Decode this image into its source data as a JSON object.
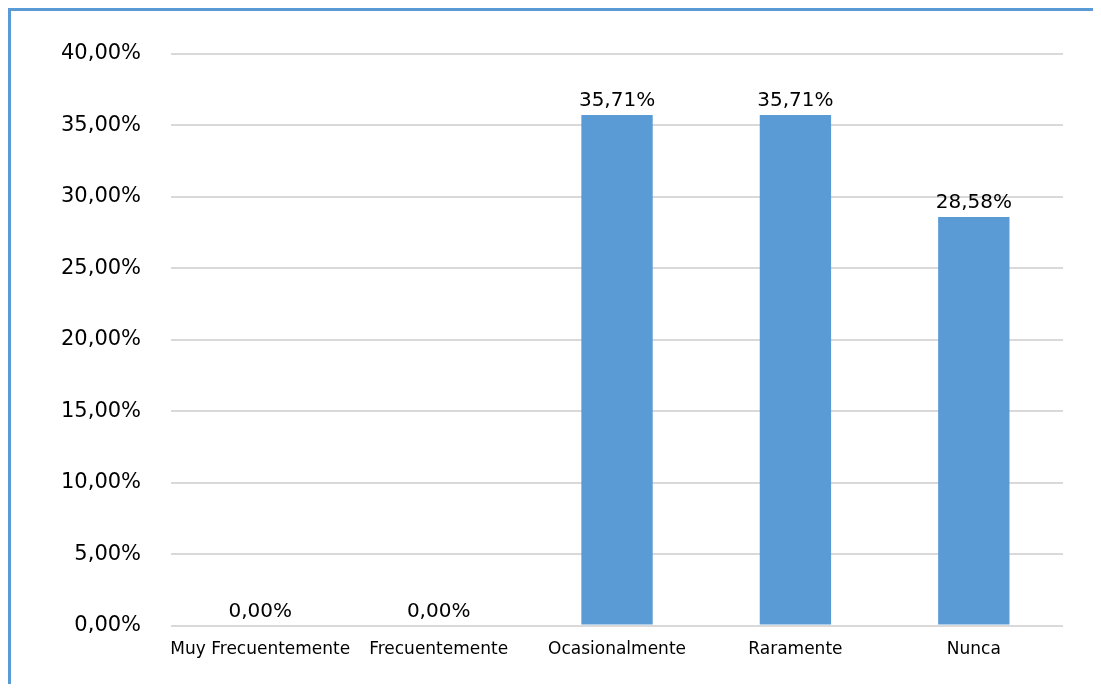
{
  "chart_data": {
    "type": "bar",
    "categories": [
      "Muy Frecuentemente",
      "Frecuentemente",
      "Ocasionalmente",
      "Raramente",
      "Nunca"
    ],
    "values": [
      0,
      0,
      35.71,
      35.71,
      28.58
    ],
    "value_labels": [
      "0,00%",
      "0,00%",
      "35,71%",
      "35,71%",
      "28,58%"
    ],
    "color": "#5b9bd5",
    "ylim": [
      0,
      40
    ],
    "yticks": [
      {
        "value": 0,
        "label": "0,00%"
      },
      {
        "value": 5,
        "label": "5,00%"
      },
      {
        "value": 10,
        "label": "10,00%"
      },
      {
        "value": 15,
        "label": "15,00%"
      },
      {
        "value": 20,
        "label": "20,00%"
      },
      {
        "value": 25,
        "label": "25,00%"
      },
      {
        "value": 30,
        "label": "30,00%"
      },
      {
        "value": 35,
        "label": "35,00%"
      },
      {
        "value": 40,
        "label": "40,00%"
      }
    ],
    "grid": "y"
  }
}
